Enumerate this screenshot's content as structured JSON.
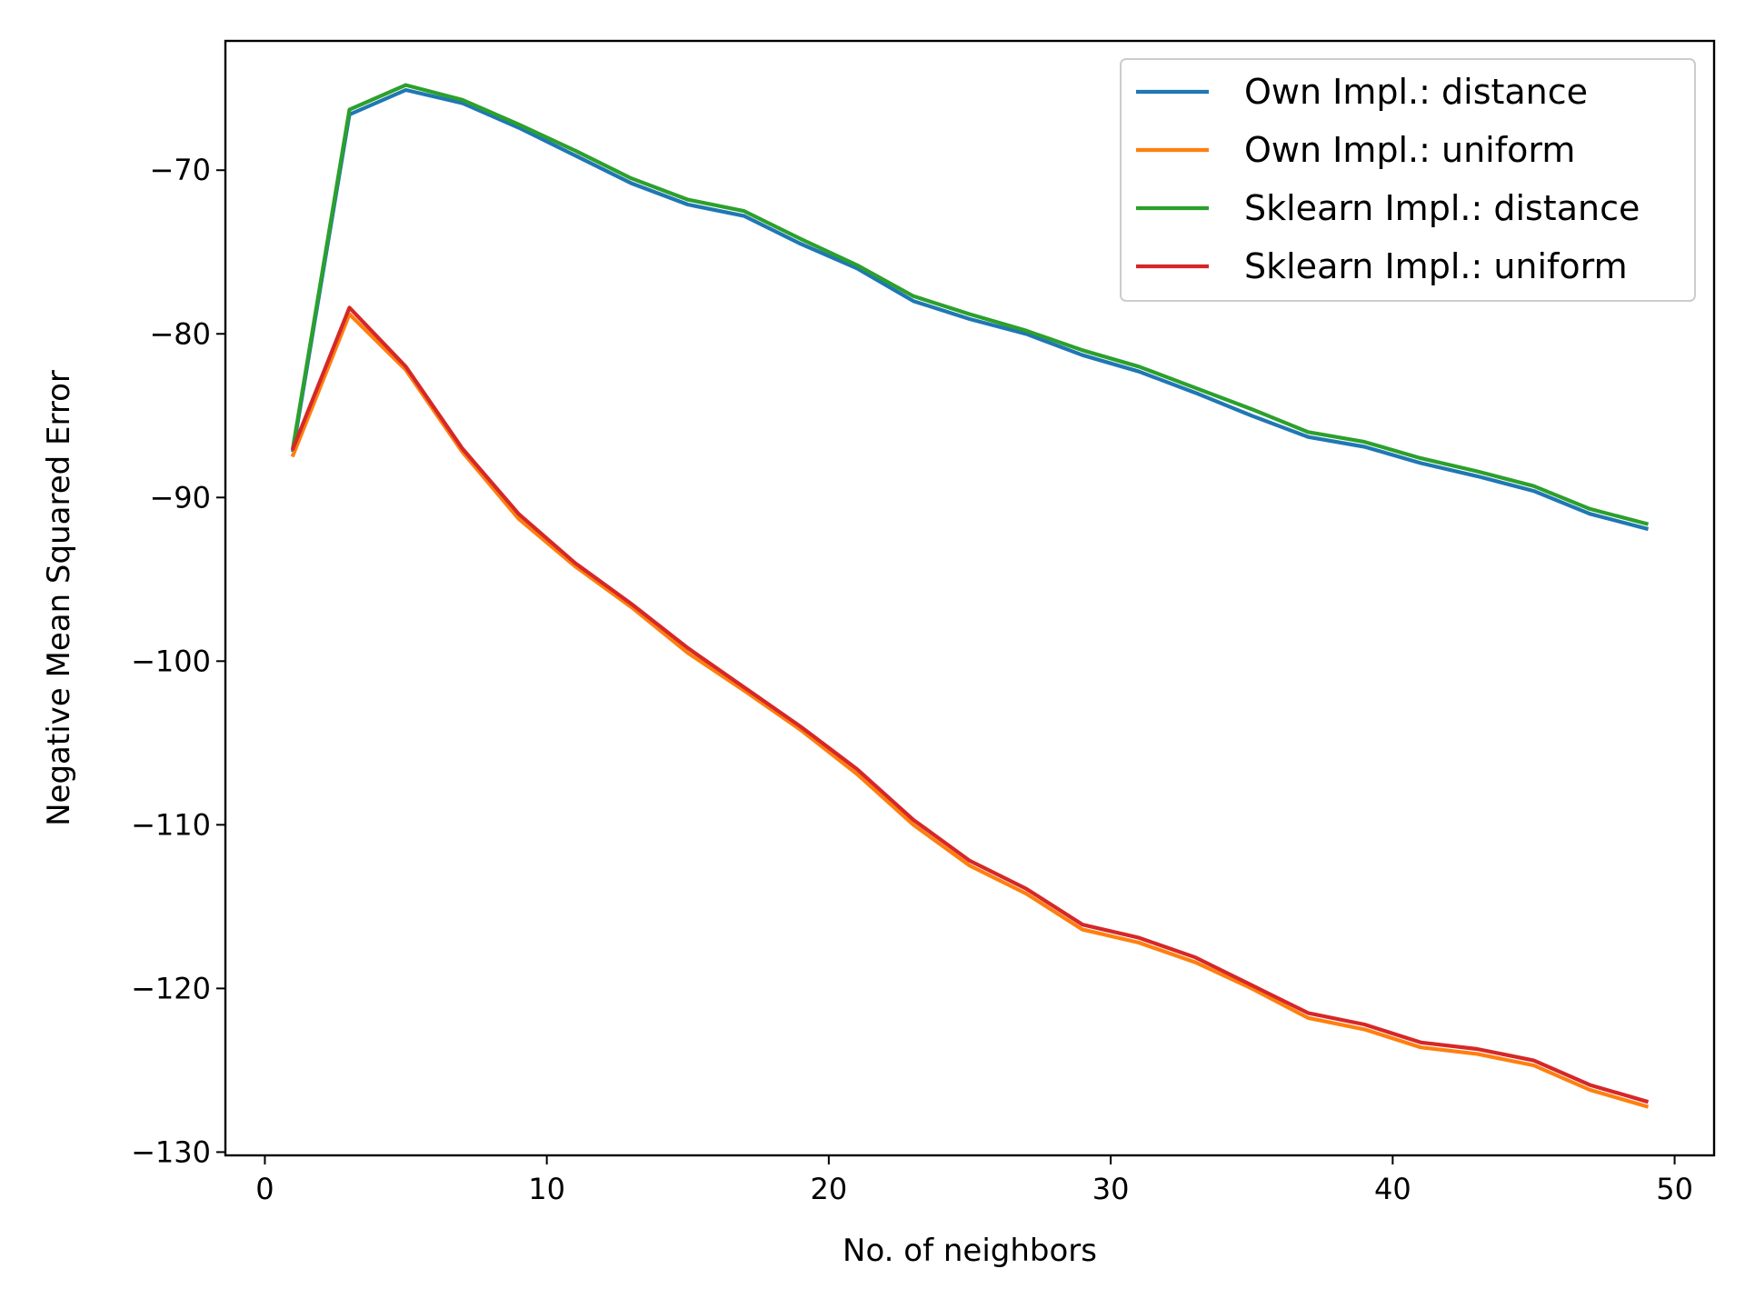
{
  "chart_data": {
    "type": "line",
    "title": "",
    "xlabel": "No. of neighbors",
    "ylabel": "Negative Mean Squared Error",
    "xlim": [
      -1.4,
      51.4
    ],
    "ylim": [
      -130.2,
      -62.1
    ],
    "xticks": [
      0,
      10,
      20,
      30,
      40,
      50
    ],
    "yticks": [
      -70,
      -80,
      -90,
      -100,
      -110,
      -120,
      -130
    ],
    "ytick_labels": [
      "−70",
      "−80",
      "−90",
      "−100",
      "−110",
      "−120",
      "−130"
    ],
    "grid": false,
    "legend_position": "top-right",
    "x": [
      1,
      3,
      5,
      7,
      9,
      11,
      13,
      15,
      17,
      19,
      21,
      23,
      25,
      27,
      29,
      31,
      33,
      35,
      37,
      39,
      41,
      43,
      45,
      47,
      49
    ],
    "series": [
      {
        "name": "Own Impl.: distance",
        "color": "#1f77b4",
        "values": [
          -87.1,
          -66.6,
          -65.1,
          -65.9,
          -67.4,
          -69.1,
          -70.8,
          -72.1,
          -72.8,
          -74.5,
          -76.0,
          -78.0,
          -79.1,
          -80.0,
          -81.3,
          -82.3,
          -83.6,
          -85.0,
          -86.3,
          -86.9,
          -87.9,
          -88.7,
          -89.6,
          -91.0,
          -91.9
        ]
      },
      {
        "name": "Own Impl.: uniform",
        "color": "#ff7f0e",
        "values": [
          -87.4,
          -78.8,
          -82.2,
          -87.2,
          -91.3,
          -94.2,
          -96.7,
          -99.5,
          -101.8,
          -104.2,
          -106.9,
          -110.0,
          -112.5,
          -114.2,
          -116.4,
          -117.2,
          -118.4,
          -120.0,
          -121.8,
          -122.5,
          -123.6,
          -124.0,
          -124.7,
          -126.2,
          -127.2
        ]
      },
      {
        "name": "Sklearn Impl.: distance",
        "color": "#2ca02c",
        "values": [
          -86.9,
          -66.3,
          -64.8,
          -65.7,
          -67.2,
          -68.8,
          -70.5,
          -71.8,
          -72.5,
          -74.2,
          -75.8,
          -77.7,
          -78.8,
          -79.8,
          -81.0,
          -82.0,
          -83.3,
          -84.6,
          -86.0,
          -86.6,
          -87.6,
          -88.4,
          -89.3,
          -90.7,
          -91.6
        ]
      },
      {
        "name": "Sklearn Impl.: uniform",
        "color": "#d62728",
        "values": [
          -87.0,
          -78.4,
          -82.0,
          -87.0,
          -91.0,
          -94.0,
          -96.5,
          -99.2,
          -101.6,
          -104.0,
          -106.6,
          -109.7,
          -112.2,
          -113.9,
          -116.1,
          -116.9,
          -118.1,
          -119.8,
          -121.5,
          -122.2,
          -123.3,
          -123.7,
          -124.4,
          -125.9,
          -126.9
        ]
      }
    ]
  }
}
